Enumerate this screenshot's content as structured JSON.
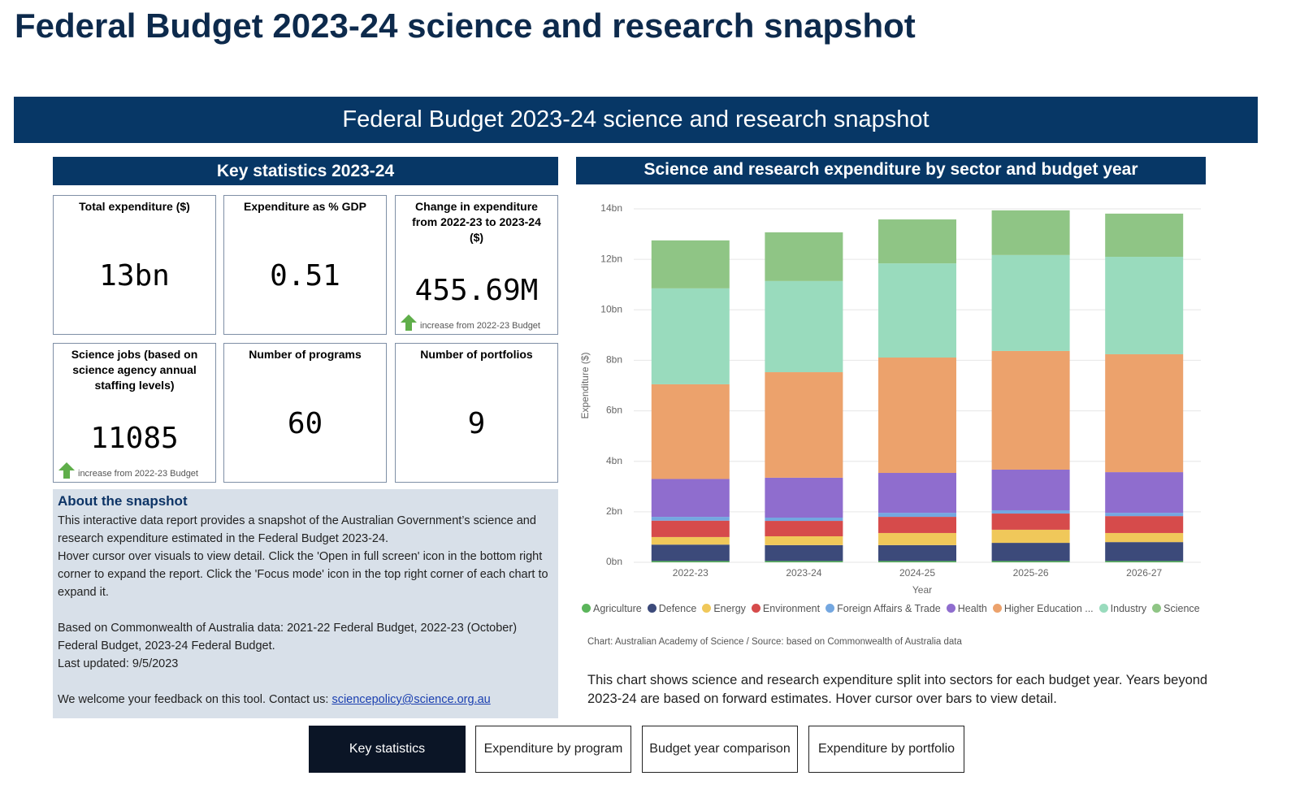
{
  "page_title": "Federal Budget 2023-24 science and research snapshot",
  "banner": "Federal Budget 2023-24 science and research snapshot",
  "key_stats": {
    "title": "Key statistics 2023-24",
    "cards": [
      {
        "label": "Total expenditure ($)",
        "value": "13bn"
      },
      {
        "label": "Expenditure as % GDP",
        "value": 0.51
      },
      {
        "label": "Change in expenditure from 2022-23 to 2023-24 ($)",
        "value": "455.69M",
        "note": "increase from 2022-23 Budget"
      },
      {
        "label": "Science jobs (based on science agency annual staffing levels)",
        "value": 11085,
        "note": "increase from 2022-23 Budget"
      },
      {
        "label": "Number of programs",
        "value": 60
      },
      {
        "label": "Number of portfolios",
        "value": 9
      }
    ]
  },
  "about": {
    "title": "About the snapshot",
    "paragraphs": [
      "This interactive data report provides a snapshot of the Australian Government’s science and research expenditure estimated in the Federal Budget 2023-24.",
      "Hover cursor over visuals to view detail. Click the 'Open in full screen' icon in the bottom right corner to expand the report. Click the 'Focus mode' icon in the top right corner of each chart to expand it.",
      "Based on Commonwealth of Australia data: 2021-22 Federal Budget, 2022-23 (October) Federal Budget, 2023-24 Federal Budget.",
      "Last updated: 9/5/2023"
    ],
    "feedback": "We welcome your feedback on this tool. Contact us:",
    "email": "sciencepolicy@science.org.au"
  },
  "chart_data": {
    "type": "bar",
    "stacked": true,
    "title": "Science and research expenditure by sector and budget year",
    "x_label": "Year",
    "y_label": "Expenditure ($)",
    "categories": [
      "2022-23",
      "2023-24",
      "2024-25",
      "2025-26",
      "2026-27"
    ],
    "series": [
      {
        "name": "Agriculture",
        "color": "#5bb55b",
        "values": [
          0.05,
          0.05,
          0.05,
          0.05,
          0.05
        ]
      },
      {
        "name": "Defence",
        "color": "#3c4a7a",
        "values": [
          0.65,
          0.63,
          0.63,
          0.72,
          0.75
        ]
      },
      {
        "name": "Energy",
        "color": "#f0c85a",
        "values": [
          0.3,
          0.35,
          0.48,
          0.52,
          0.36
        ]
      },
      {
        "name": "Environment",
        "color": "#d64b4b",
        "values": [
          0.65,
          0.61,
          0.64,
          0.64,
          0.67
        ]
      },
      {
        "name": "Foreign Affairs & Trade",
        "color": "#74a7e0",
        "values": [
          0.15,
          0.13,
          0.16,
          0.13,
          0.13
        ]
      },
      {
        "name": "Health",
        "color": "#8f6dce",
        "values": [
          1.5,
          1.58,
          1.58,
          1.61,
          1.61
        ]
      },
      {
        "name": "Higher Education ...",
        "color": "#eca26c",
        "values": [
          3.75,
          4.18,
          4.57,
          4.7,
          4.67
        ]
      },
      {
        "name": "Industry",
        "color": "#99dbbd",
        "values": [
          3.8,
          3.61,
          3.73,
          3.8,
          3.86
        ]
      },
      {
        "name": "Science",
        "color": "#8fc585",
        "values": [
          1.9,
          1.93,
          1.74,
          1.77,
          1.71
        ]
      }
    ],
    "ylim": [
      0,
      14
    ],
    "yticks": [
      {
        "value": 0,
        "label": "0bn"
      },
      {
        "value": 2,
        "label": "2bn"
      },
      {
        "value": 4,
        "label": "4bn"
      },
      {
        "value": 6,
        "label": "6bn"
      },
      {
        "value": 8,
        "label": "8bn"
      },
      {
        "value": 10,
        "label": "10bn"
      },
      {
        "value": 12,
        "label": "12bn"
      },
      {
        "value": 14,
        "label": "14bn"
      }
    ],
    "grid": true,
    "legend": "bottom"
  },
  "chart_note": "Chart: Australian Academy of Science / Source: based on Commonwealth of Australia data",
  "chart_description": "This chart shows science and research expenditure split into sectors for each budget year. Years beyond 2023-24 are based on forward estimates. Hover cursor over bars to view detail.",
  "tabs": [
    "Key statistics",
    "Expenditure by program",
    "Budget year comparison",
    "Expenditure by portfolio"
  ]
}
